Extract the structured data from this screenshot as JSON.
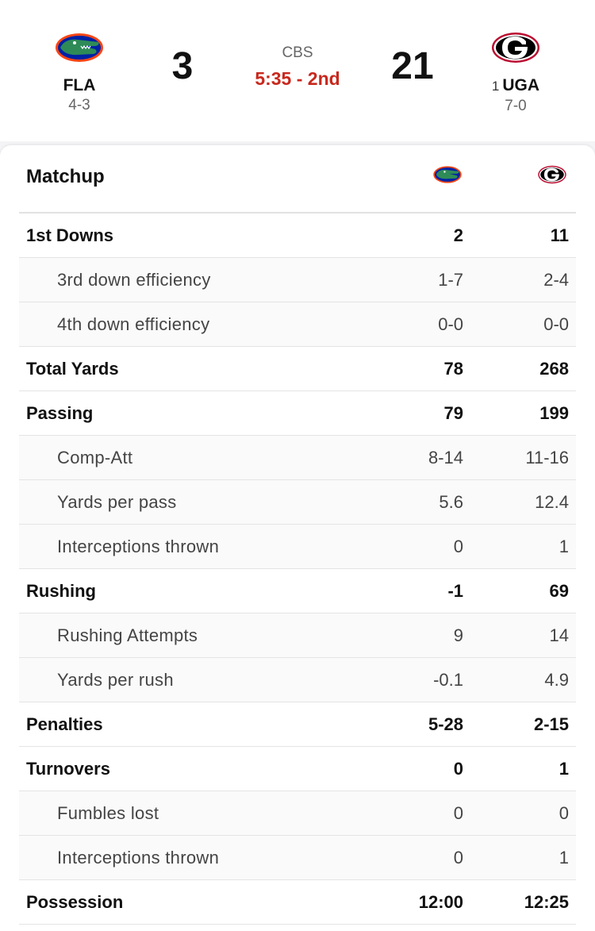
{
  "game": {
    "away": {
      "abbr": "FLA",
      "record": "4-3",
      "score": "3",
      "logo": "florida-gator-logo",
      "colors": {
        "primary": "#0021a5",
        "secondary": "#fa4616",
        "accent": "#2e8b57"
      }
    },
    "home": {
      "rank": "1",
      "abbr": "UGA",
      "record": "7-0",
      "score": "21",
      "logo": "georgia-g-logo",
      "colors": {
        "primary": "#ba0c2f",
        "secondary": "#000000"
      }
    },
    "network": "CBS",
    "clock": "5:35 - 2nd",
    "clock_color": "#c8281d"
  },
  "matchup": {
    "title": "Matchup",
    "rows": [
      {
        "label": "1st Downs",
        "away": "2",
        "home": "11",
        "type": "major"
      },
      {
        "label": "3rd down efficiency",
        "away": "1-7",
        "home": "2-4",
        "type": "minor"
      },
      {
        "label": "4th down efficiency",
        "away": "0-0",
        "home": "0-0",
        "type": "minor"
      },
      {
        "label": "Total Yards",
        "away": "78",
        "home": "268",
        "type": "major"
      },
      {
        "label": "Passing",
        "away": "79",
        "home": "199",
        "type": "major"
      },
      {
        "label": "Comp-Att",
        "away": "8-14",
        "home": "11-16",
        "type": "minor"
      },
      {
        "label": "Yards per pass",
        "away": "5.6",
        "home": "12.4",
        "type": "minor"
      },
      {
        "label": "Interceptions thrown",
        "away": "0",
        "home": "1",
        "type": "minor"
      },
      {
        "label": "Rushing",
        "away": "-1",
        "home": "69",
        "type": "major"
      },
      {
        "label": "Rushing Attempts",
        "away": "9",
        "home": "14",
        "type": "minor"
      },
      {
        "label": "Yards per rush",
        "away": "-0.1",
        "home": "4.9",
        "type": "minor"
      },
      {
        "label": "Penalties",
        "away": "5-28",
        "home": "2-15",
        "type": "major"
      },
      {
        "label": "Turnovers",
        "away": "0",
        "home": "1",
        "type": "major"
      },
      {
        "label": "Fumbles lost",
        "away": "0",
        "home": "0",
        "type": "minor"
      },
      {
        "label": "Interceptions thrown",
        "away": "0",
        "home": "1",
        "type": "minor"
      },
      {
        "label": "Possession",
        "away": "12:00",
        "home": "12:25",
        "type": "major"
      }
    ]
  }
}
